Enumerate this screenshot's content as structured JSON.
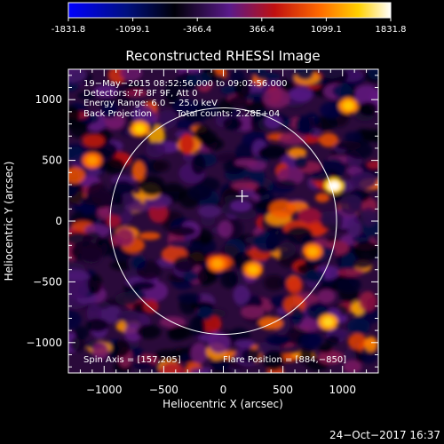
{
  "colorbar": {
    "tick_labels": [
      "-1831.8",
      "-1099.1",
      "-366.4",
      "366.4",
      "1099.1",
      "1831.8"
    ],
    "range": [
      -1831.8,
      1831.8
    ],
    "colormap": "blue-to-white diverging (blue, black, purple, red, orange, yellow, white)"
  },
  "chart_data": {
    "type": "heatmap",
    "title": "Reconstructed RHESSI Image",
    "xlabel": "Heliocentric X (arcsec)",
    "ylabel": "Heliocentric Y (arcsec)",
    "xlim": [
      -1300,
      1300
    ],
    "ylim": [
      -1250,
      1250
    ],
    "x_ticks": [
      -1000,
      -500,
      0,
      500,
      1000
    ],
    "y_ticks": [
      -1000,
      -500,
      0,
      500,
      1000
    ],
    "x_tick_labels": [
      "−1000",
      "−500",
      "0",
      "500",
      "1000"
    ],
    "y_tick_labels": [
      "−1000",
      "−500",
      "0",
      "500",
      "1000"
    ],
    "solar_limb_radius": 950,
    "crosshair": [
      157,
      205
    ],
    "hot_spots": [
      {
        "x": 930,
        "y": 290,
        "value": 1830
      },
      {
        "x": 880,
        "y": -830,
        "value": 1500
      },
      {
        "x": 1050,
        "y": 950,
        "value": 1400
      },
      {
        "x": -700,
        "y": 760,
        "value": 1450
      },
      {
        "x": 250,
        "y": -400,
        "value": 1350
      },
      {
        "x": 750,
        "y": -250,
        "value": 1300
      },
      {
        "x": -50,
        "y": -350,
        "value": 1250
      },
      {
        "x": -1100,
        "y": 500,
        "value": 1200
      }
    ],
    "annotations": {
      "time": "19−May−2015 08:52:56.000 to 09:02:56.000",
      "detectors": "Detectors: 7F 8F 9F, Att 0",
      "energy": "Energy Range: 6.0 − 25.0 keV",
      "method": "Back Projection",
      "counts": "Total counts: 2.28E+04",
      "spin_axis": "Spin Axis = [157,205]",
      "flare_position": "Flare Position = [884,−850]"
    }
  },
  "footer": {
    "timestamp": "24−Oct−2017 16:37"
  }
}
